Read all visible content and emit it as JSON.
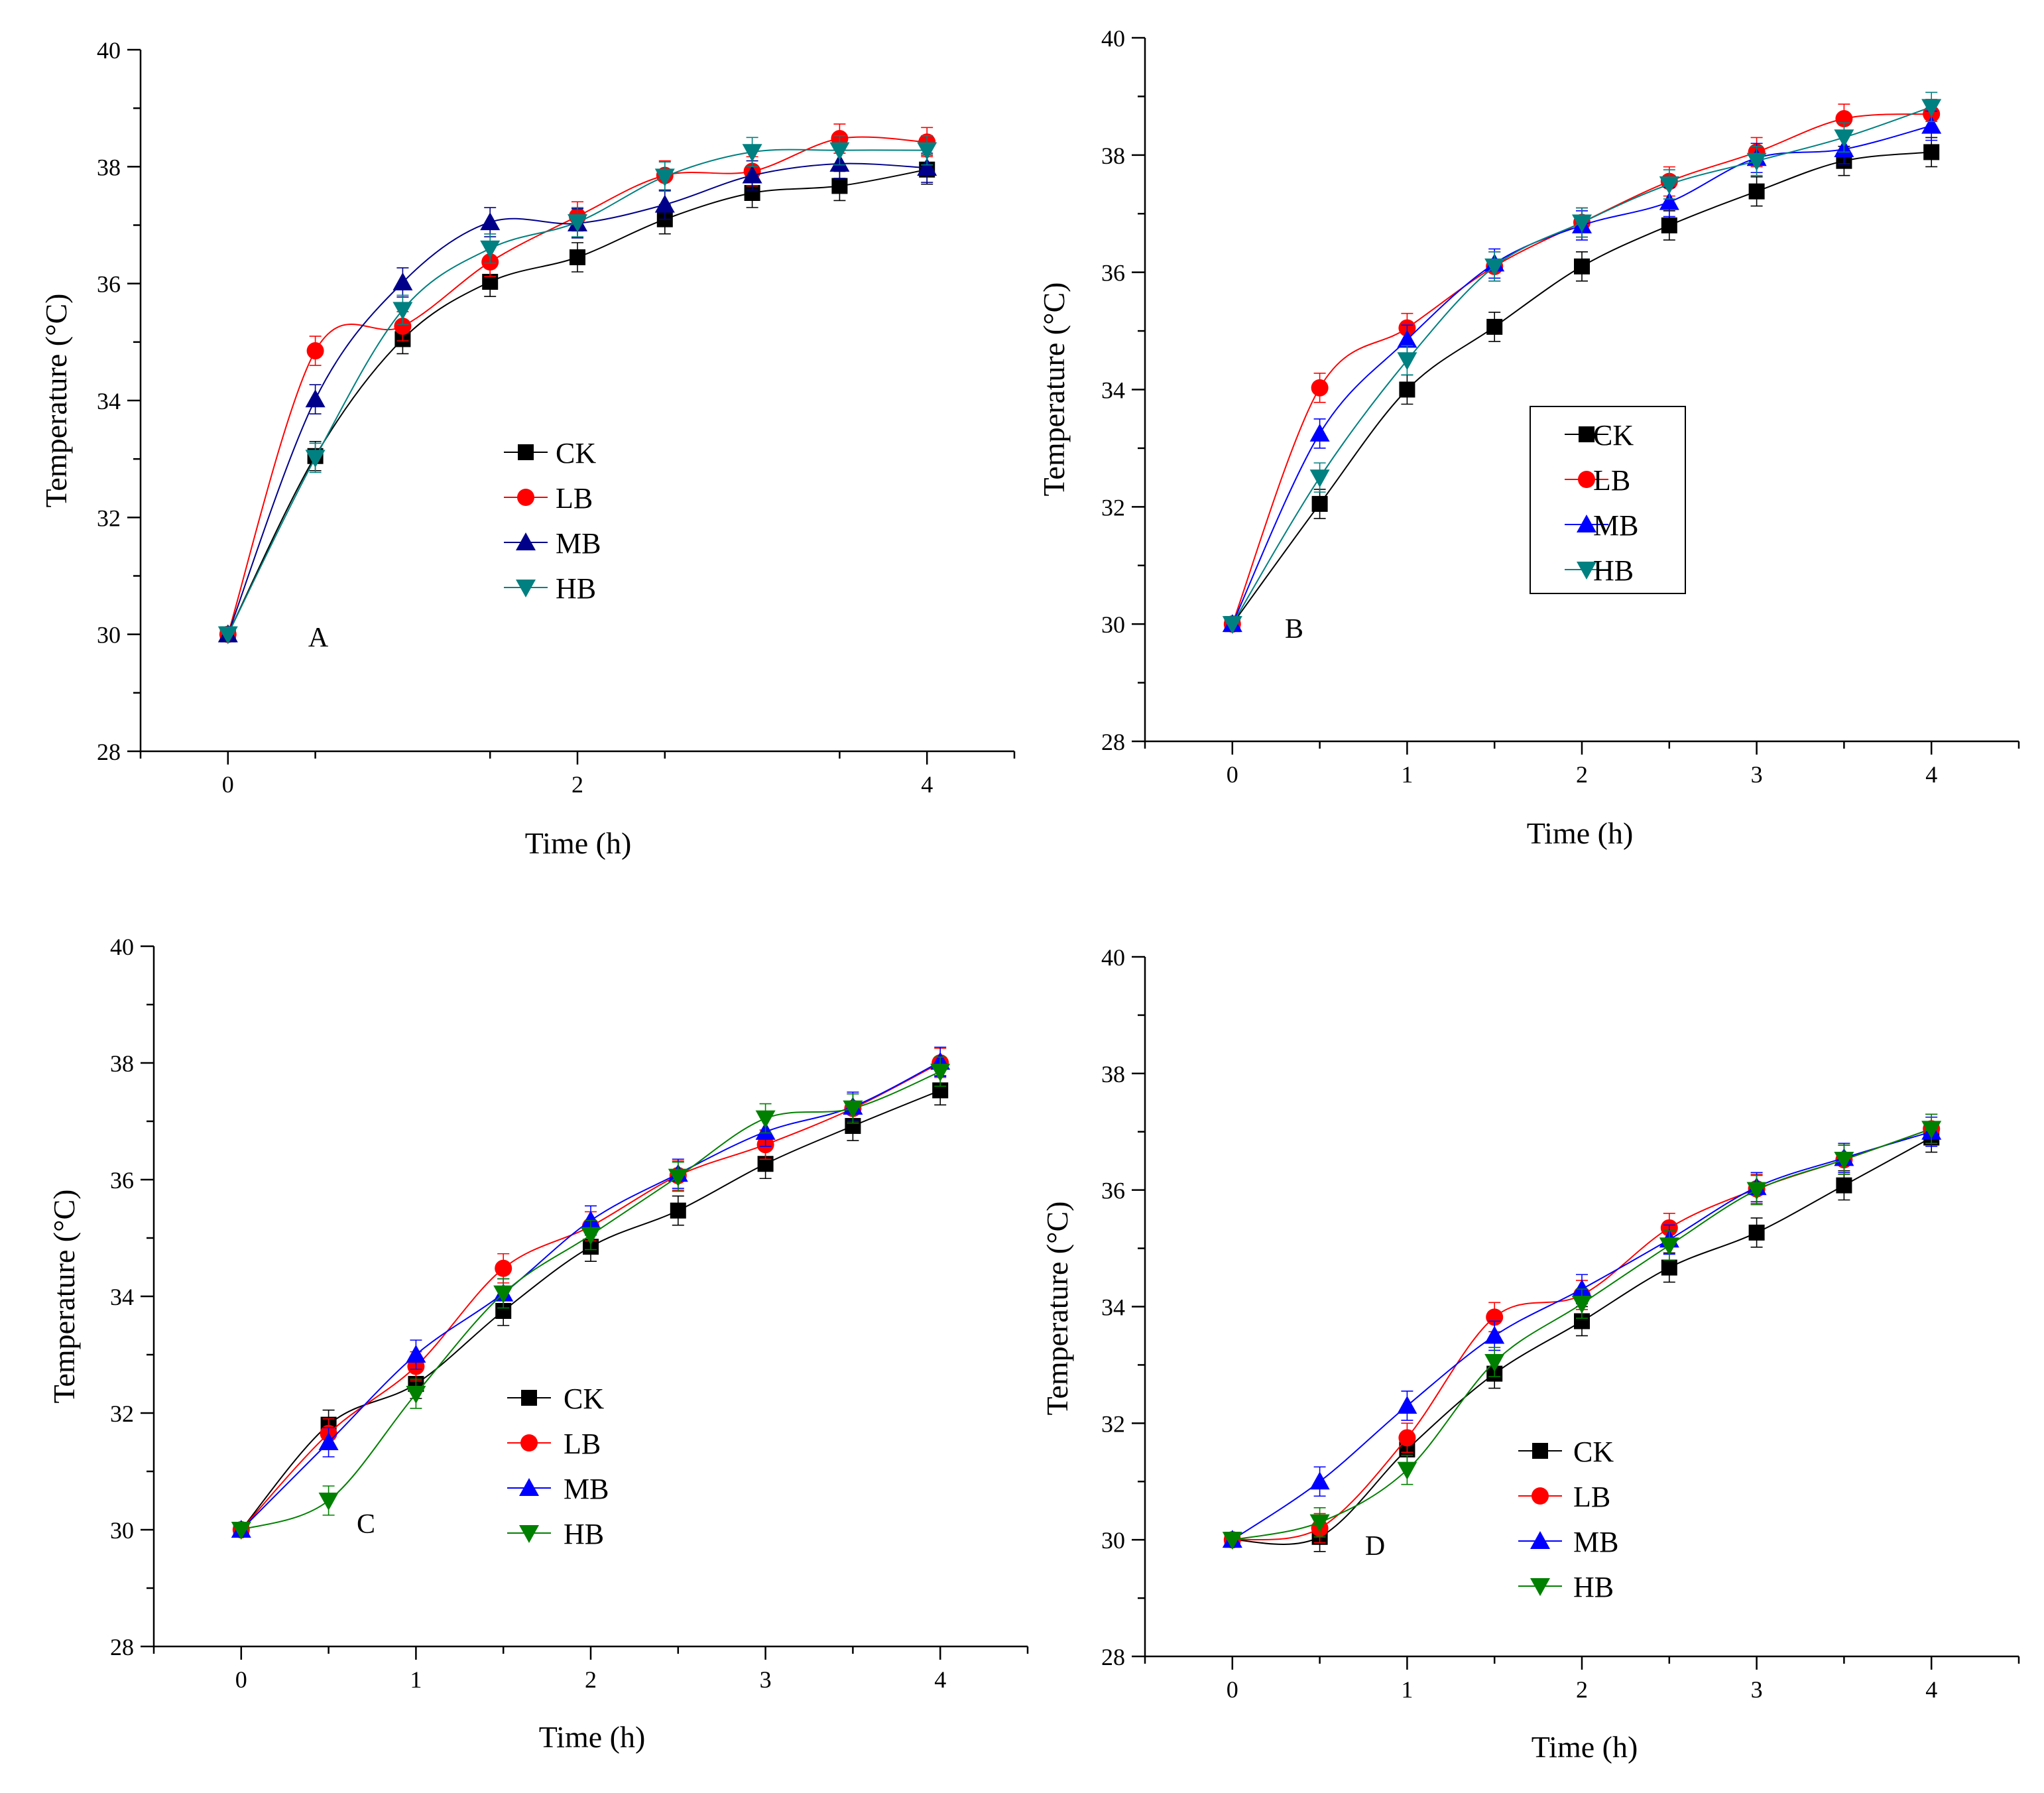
{
  "chart_data": [
    {
      "type": "line",
      "panel_label": "A",
      "xlabel": "Time (h)",
      "ylabel": "Temperature (°C)",
      "xlim": [
        -0.5,
        4.5
      ],
      "ylim": [
        28,
        40
      ],
      "xticks": [
        0,
        2,
        4
      ],
      "yticks": [
        28,
        30,
        32,
        34,
        36,
        38,
        40
      ],
      "legend_position": "center",
      "x": [
        0,
        0.5,
        1,
        1.5,
        2,
        2.5,
        3,
        3.5,
        4
      ],
      "series": [
        {
          "name": "CK",
          "color": "#000000",
          "marker": "square",
          "values": [
            30.0,
            33.05,
            35.05,
            36.03,
            36.45,
            37.1,
            37.55,
            37.67,
            37.95
          ]
        },
        {
          "name": "LB",
          "color": "#ff0000",
          "marker": "circle",
          "values": [
            30.0,
            34.85,
            35.27,
            36.37,
            37.15,
            37.85,
            37.92,
            38.48,
            38.42
          ]
        },
        {
          "name": "MB",
          "color": "#00008b",
          "marker": "triangle-up",
          "values": [
            30.0,
            34.02,
            36.02,
            37.05,
            37.03,
            37.35,
            37.85,
            38.05,
            37.98
          ]
        },
        {
          "name": "HB",
          "color": "#008080",
          "marker": "triangle-down",
          "values": [
            30.0,
            33.02,
            35.55,
            36.6,
            37.05,
            37.83,
            38.25,
            38.28,
            38.28
          ]
        }
      ]
    },
    {
      "type": "line",
      "panel_label": "B",
      "xlabel": "Time (h)",
      "ylabel": "Temperature (°C)",
      "xlim": [
        -0.5,
        4.5
      ],
      "ylim": [
        28,
        40
      ],
      "xticks": [
        0,
        1,
        2,
        3,
        4
      ],
      "yticks": [
        28,
        30,
        32,
        34,
        36,
        38,
        40
      ],
      "legend_position": "center-right",
      "legend_frame": true,
      "x": [
        0,
        0.5,
        1,
        1.5,
        2,
        2.5,
        3,
        3.5,
        4
      ],
      "series": [
        {
          "name": "CK",
          "color": "#000000",
          "marker": "square",
          "values": [
            30.0,
            32.05,
            34.0,
            35.07,
            36.1,
            36.8,
            37.38,
            37.9,
            38.05
          ]
        },
        {
          "name": "LB",
          "color": "#ff0000",
          "marker": "circle",
          "values": [
            30.0,
            34.03,
            35.05,
            36.1,
            36.85,
            37.55,
            38.05,
            38.62,
            38.7
          ]
        },
        {
          "name": "MB",
          "color": "#0000ff",
          "marker": "triangle-up",
          "values": [
            30.0,
            33.25,
            34.85,
            36.15,
            36.8,
            37.2,
            37.95,
            38.1,
            38.5
          ]
        },
        {
          "name": "HB",
          "color": "#008080",
          "marker": "triangle-down",
          "values": [
            30.0,
            32.5,
            34.5,
            36.1,
            36.85,
            37.5,
            37.9,
            38.3,
            38.82
          ]
        }
      ]
    },
    {
      "type": "line",
      "panel_label": "C",
      "xlabel": "Time (h)",
      "ylabel": "Temperature (°C)",
      "xlim": [
        -0.5,
        4.5
      ],
      "ylim": [
        28,
        40
      ],
      "xticks": [
        0,
        1,
        2,
        3,
        4
      ],
      "yticks": [
        28,
        30,
        32,
        34,
        36,
        38,
        40
      ],
      "legend_position": "center",
      "x": [
        0,
        0.5,
        1,
        1.5,
        2,
        2.5,
        3,
        3.5,
        4
      ],
      "series": [
        {
          "name": "CK",
          "color": "#000000",
          "marker": "square",
          "values": [
            30.0,
            31.8,
            32.5,
            33.75,
            34.85,
            35.47,
            36.27,
            36.92,
            37.53
          ]
        },
        {
          "name": "LB",
          "color": "#ff0000",
          "marker": "circle",
          "values": [
            30.0,
            31.65,
            32.8,
            34.48,
            35.2,
            36.07,
            36.6,
            37.22,
            38.0
          ]
        },
        {
          "name": "MB",
          "color": "#0000ff",
          "marker": "triangle-up",
          "values": [
            30.0,
            31.5,
            33.0,
            34.05,
            35.3,
            36.1,
            36.82,
            37.25,
            38.02
          ]
        },
        {
          "name": "HB",
          "color": "#008000",
          "marker": "triangle-down",
          "values": [
            30.0,
            30.5,
            32.33,
            34.05,
            35.05,
            36.05,
            37.05,
            37.22,
            37.85
          ]
        }
      ]
    },
    {
      "type": "line",
      "panel_label": "D",
      "xlabel": "Time (h)",
      "ylabel": "Temperature (°C)",
      "xlim": [
        -0.5,
        4.5
      ],
      "ylim": [
        28,
        40
      ],
      "xticks": [
        0,
        1,
        2,
        3,
        4
      ],
      "yticks": [
        28,
        30,
        32,
        34,
        36,
        38,
        40
      ],
      "legend_position": "bottom-center",
      "x": [
        0,
        0.5,
        1,
        1.5,
        2,
        2.5,
        3,
        3.5,
        4
      ],
      "series": [
        {
          "name": "CK",
          "color": "#000000",
          "marker": "square",
          "values": [
            30.0,
            30.05,
            31.55,
            32.85,
            33.75,
            34.67,
            35.27,
            36.08,
            36.9
          ]
        },
        {
          "name": "LB",
          "color": "#ff0000",
          "marker": "circle",
          "values": [
            30.0,
            30.2,
            31.75,
            33.82,
            34.2,
            35.35,
            36.02,
            36.52,
            37.05
          ]
        },
        {
          "name": "MB",
          "color": "#0000ff",
          "marker": "triangle-up",
          "values": [
            30.0,
            31.0,
            32.3,
            33.5,
            34.3,
            35.15,
            36.05,
            36.55,
            37.0
          ]
        },
        {
          "name": "HB",
          "color": "#008000",
          "marker": "triangle-down",
          "values": [
            30.0,
            30.3,
            31.2,
            33.05,
            34.05,
            35.05,
            36.0,
            36.52,
            37.05
          ]
        }
      ]
    }
  ]
}
